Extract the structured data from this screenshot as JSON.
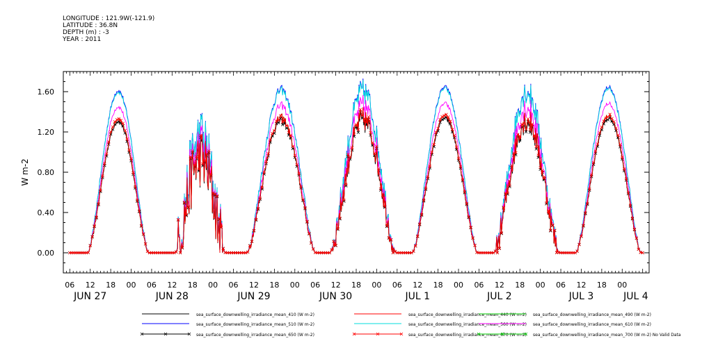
{
  "header": {
    "longitude": "LONGITUDE : 121.9W(-121.9)",
    "latitude": "LATITUDE : 36.8N",
    "depth": "DEPTH (m) : -3",
    "year": "YEAR : 2011"
  },
  "chart_data": {
    "type": "line",
    "title": "",
    "xlabel": "",
    "ylabel": "W m-2",
    "ylim": [
      -0.2,
      1.8
    ],
    "xlim": [
      0,
      168
    ],
    "yticks": [
      0.0,
      0.4,
      0.8,
      1.2,
      1.6
    ],
    "ytick_labels": [
      "0.00",
      "0.40",
      "0.80",
      "1.20",
      "1.60"
    ],
    "x_hour_ticks": [
      {
        "x": 0,
        "label": "06"
      },
      {
        "x": 6,
        "label": "12"
      },
      {
        "x": 12,
        "label": "18"
      },
      {
        "x": 18,
        "label": "00"
      },
      {
        "x": 24,
        "label": "06"
      },
      {
        "x": 30,
        "label": "12"
      },
      {
        "x": 36,
        "label": "18"
      },
      {
        "x": 42,
        "label": "00"
      },
      {
        "x": 48,
        "label": "06"
      },
      {
        "x": 54,
        "label": "12"
      },
      {
        "x": 60,
        "label": "18"
      },
      {
        "x": 66,
        "label": "00"
      },
      {
        "x": 72,
        "label": "06"
      },
      {
        "x": 78,
        "label": "12"
      },
      {
        "x": 84,
        "label": "18"
      },
      {
        "x": 90,
        "label": "00"
      },
      {
        "x": 96,
        "label": "06"
      },
      {
        "x": 102,
        "label": "12"
      },
      {
        "x": 108,
        "label": "18"
      },
      {
        "x": 114,
        "label": "00"
      },
      {
        "x": 120,
        "label": "06"
      },
      {
        "x": 126,
        "label": "12"
      },
      {
        "x": 132,
        "label": "18"
      },
      {
        "x": 138,
        "label": "00"
      },
      {
        "x": 144,
        "label": "06"
      },
      {
        "x": 150,
        "label": "12"
      },
      {
        "x": 156,
        "label": "18"
      },
      {
        "x": 162,
        "label": "00"
      }
    ],
    "x_date_labels": [
      {
        "x": 6,
        "label": "JUN 27"
      },
      {
        "x": 30,
        "label": "JUN 28"
      },
      {
        "x": 54,
        "label": "JUN 29"
      },
      {
        "x": 78,
        "label": "JUN 30"
      },
      {
        "x": 102,
        "label": "JUL 1"
      },
      {
        "x": 126,
        "label": "JUL 2"
      },
      {
        "x": 150,
        "label": "JUL 3"
      },
      {
        "x": 166,
        "label": "JUL 4"
      }
    ],
    "grid": false,
    "legend_position": "bottom",
    "day_peaks": [
      {
        "center": 14.2,
        "width": 5.6,
        "amp": 1.33,
        "noise": 0.02
      },
      {
        "center": 38.3,
        "width": 4.6,
        "amp": 0.95,
        "noise": 0.3
      },
      {
        "center": 62.0,
        "width": 6.3,
        "amp": 1.34,
        "noise": 0.04
      },
      {
        "center": 86.0,
        "width": 6.1,
        "amp": 1.33,
        "noise": 0.12
      },
      {
        "center": 110.0,
        "width": 6.0,
        "amp": 1.36,
        "noise": 0.02
      },
      {
        "center": 134.0,
        "width": 6.0,
        "amp": 1.33,
        "noise": 0.12
      },
      {
        "center": 158.0,
        "width": 6.0,
        "amp": 1.36,
        "noise": 0.02
      }
    ],
    "series": [
      {
        "name": "sea_surface_downwelling_irradiance_mean_410 (W m-2)",
        "color": "#000000",
        "scale": 1.0,
        "marker": "none"
      },
      {
        "name": "sea_surface_downwelling_irradiance_mean_440 (W m-2)",
        "color": "#ff0000",
        "scale": 1.0,
        "marker": "none"
      },
      {
        "name": "sea_surface_downwelling_irradiance_mean_490 (W m-2)",
        "color": "#00cc00",
        "scale": 1.0,
        "marker": "none"
      },
      {
        "name": "sea_surface_downwelling_irradiance_mean_510 (W m-2)",
        "color": "#0000ff",
        "scale": 1.21,
        "marker": "none"
      },
      {
        "name": "sea_surface_downwelling_irradiance_mean_560 (W m-2)",
        "color": "#00dddd",
        "scale": 1.2,
        "marker": "none"
      },
      {
        "name": "sea_surface_downwelling_irradiance_mean_610 (W m-2)",
        "color": "#ff00ff",
        "scale": 1.09,
        "marker": "none"
      },
      {
        "name": "sea_surface_downwelling_irradiance_mean_650 (W m-2)",
        "color": "#000000",
        "scale": 0.98,
        "marker": "x"
      },
      {
        "name": "sea_surface_downwelling_irradiance_mean_670 (W m-2)",
        "color": "#ff0000",
        "scale": 1.0,
        "marker": "x"
      },
      {
        "name": "sea_surface_downwelling_irradiance_mean_700 (W m-2) No Valid Data",
        "color": "#00cc00",
        "scale": 0,
        "marker": "x"
      }
    ]
  }
}
